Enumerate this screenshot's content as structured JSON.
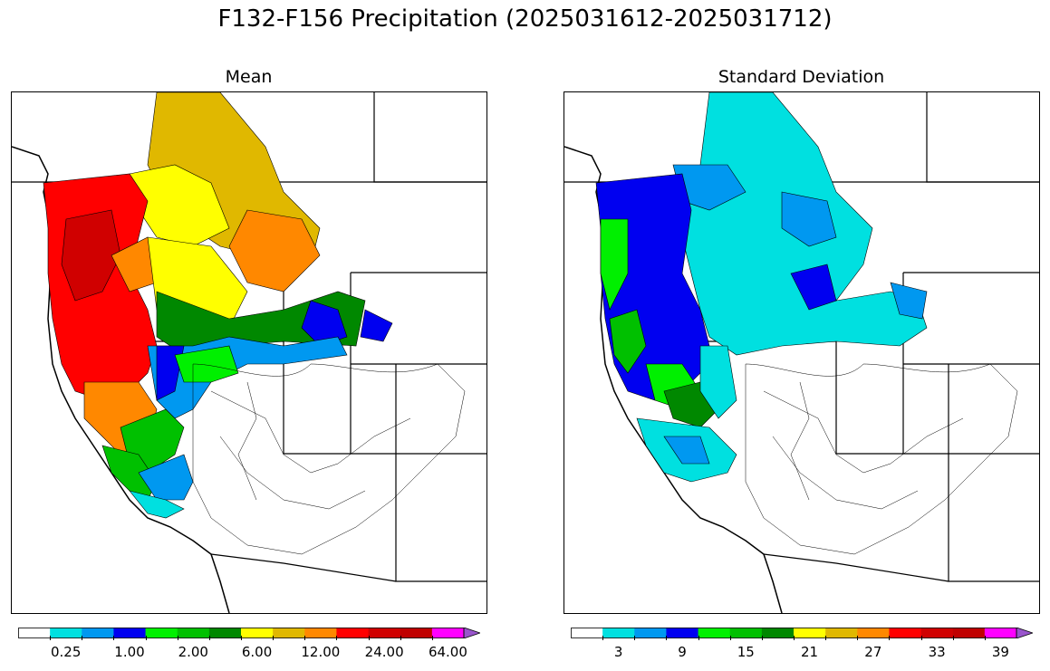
{
  "figure": {
    "title": "F132-F156 Precipitation (2025031612-2025031712)"
  },
  "panels": [
    {
      "title": "Mean",
      "colorbar": {
        "colors": [
          "#ffffff",
          "#00e0e0",
          "#0098f0",
          "#0000f0",
          "#00f000",
          "#00c000",
          "#008800",
          "#ffff00",
          "#e0b800",
          "#ff8800",
          "#ff0000",
          "#d00000",
          "#c00000",
          "#ff00ff",
          "#9955cc"
        ],
        "labels": [
          "0.25",
          "1.00",
          "2.00",
          "6.00",
          "12.00",
          "24.00",
          "64.00"
        ],
        "extend": "max"
      }
    },
    {
      "title": "Standard Deviation",
      "colorbar": {
        "colors": [
          "#ffffff",
          "#00e0e0",
          "#0098f0",
          "#0000f0",
          "#00f000",
          "#00c000",
          "#008800",
          "#ffff00",
          "#e0b800",
          "#ff8800",
          "#ff0000",
          "#d00000",
          "#c00000",
          "#ff00ff",
          "#9955cc"
        ],
        "labels": [
          "3",
          "9",
          "15",
          "21",
          "27",
          "33",
          "39"
        ],
        "extend": "max"
      }
    }
  ]
}
